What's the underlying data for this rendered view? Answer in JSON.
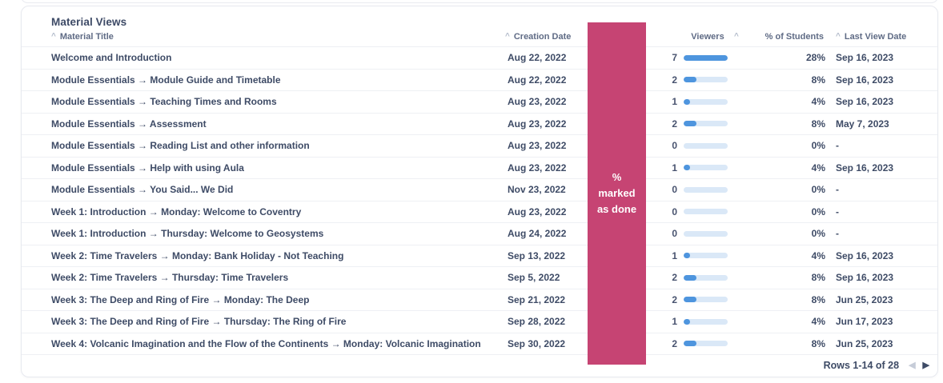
{
  "card": {
    "title": "Material Views",
    "sort_caret": "^",
    "header": {
      "material_title": "Material Title",
      "creation_date": "Creation Date",
      "viewers": "Viewers",
      "pct_students": "% of Students",
      "last_view_date": "Last View Date"
    },
    "overlay": {
      "line1": "%",
      "line2": "marked",
      "line3": "as done",
      "color": "#c64473"
    },
    "viewers_scale_max": 7,
    "rows": [
      {
        "title": "Welcome and Introduction",
        "creation_date": "Aug 22, 2022",
        "viewers": 7,
        "pct_students": "28%",
        "last_view_date": "Sep 16, 2023"
      },
      {
        "title": "Module Essentials → Module Guide and Timetable",
        "creation_date": "Aug 22, 2022",
        "viewers": 2,
        "pct_students": "8%",
        "last_view_date": "Sep 16, 2023"
      },
      {
        "title": "Module Essentials → Teaching Times and Rooms",
        "creation_date": "Aug 23, 2022",
        "viewers": 1,
        "pct_students": "4%",
        "last_view_date": "Sep 16, 2023"
      },
      {
        "title": "Module Essentials → Assessment",
        "creation_date": "Aug 23, 2022",
        "viewers": 2,
        "pct_students": "8%",
        "last_view_date": "May 7, 2023"
      },
      {
        "title": "Module Essentials → Reading List and other information",
        "creation_date": "Aug 23, 2022",
        "viewers": 0,
        "pct_students": "0%",
        "last_view_date": "-"
      },
      {
        "title": "Module Essentials → Help with using Aula",
        "creation_date": "Aug 23, 2022",
        "viewers": 1,
        "pct_students": "4%",
        "last_view_date": "Sep 16, 2023"
      },
      {
        "title": "Module Essentials → You Said... We Did",
        "creation_date": "Nov 23, 2022",
        "viewers": 0,
        "pct_students": "0%",
        "last_view_date": "-"
      },
      {
        "title": "Week 1: Introduction → Monday: Welcome to Coventry",
        "creation_date": "Aug 23, 2022",
        "viewers": 0,
        "pct_students": "0%",
        "last_view_date": "-"
      },
      {
        "title": "Week 1: Introduction → Thursday: Welcome to Geosystems",
        "creation_date": "Aug 24, 2022",
        "viewers": 0,
        "pct_students": "0%",
        "last_view_date": "-"
      },
      {
        "title": "Week 2: Time Travelers → Monday: Bank Holiday - Not Teaching",
        "creation_date": "Sep 13, 2022",
        "viewers": 1,
        "pct_students": "4%",
        "last_view_date": "Sep 16, 2023"
      },
      {
        "title": "Week 2: Time Travelers → Thursday: Time Travelers",
        "creation_date": "Sep 5, 2022",
        "viewers": 2,
        "pct_students": "8%",
        "last_view_date": "Sep 16, 2023"
      },
      {
        "title": "Week 3: The Deep and Ring of Fire → Monday: The Deep",
        "creation_date": "Sep 21, 2022",
        "viewers": 2,
        "pct_students": "8%",
        "last_view_date": "Jun 25, 2023"
      },
      {
        "title": "Week 3: The Deep and Ring of Fire → Thursday: The Ring of Fire",
        "creation_date": "Sep 28, 2022",
        "viewers": 1,
        "pct_students": "4%",
        "last_view_date": "Jun 17, 2023"
      },
      {
        "title": "Week 4: Volcanic Imagination and the Flow of the Continents → Monday: Volcanic Imagination",
        "creation_date": "Sep 30, 2022",
        "viewers": 2,
        "pct_students": "8%",
        "last_view_date": "Jun 25, 2023"
      }
    ],
    "footer": {
      "rows_label": "Rows 1-14 of 28",
      "prev_icon": "◀",
      "next_icon": "▶"
    },
    "colors": {
      "bar_fill": "#4e95de",
      "bar_track": "#dae8f7",
      "accent_pink": "#c64473"
    }
  }
}
